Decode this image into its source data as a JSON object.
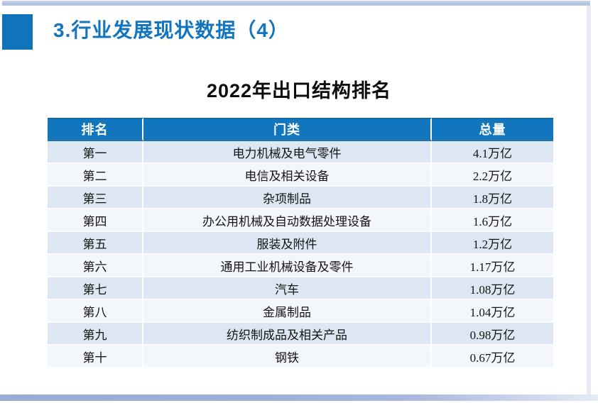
{
  "page_title": "3.行业发展现状数据（4）",
  "table_title": "2022年出口结构排名",
  "table": {
    "columns": [
      {
        "key": "rank",
        "label": "排名"
      },
      {
        "key": "category",
        "label": "门类"
      },
      {
        "key": "total",
        "label": "总量"
      }
    ],
    "rows": [
      {
        "rank": "第一",
        "category": "电力机械及电气零件",
        "total": "4.1万亿"
      },
      {
        "rank": "第二",
        "category": "电信及相关设备",
        "total": "2.2万亿"
      },
      {
        "rank": "第三",
        "category": "杂项制品",
        "total": "1.8万亿"
      },
      {
        "rank": "第四",
        "category": "办公用机械及自动数据处理设备",
        "total": "1.6万亿"
      },
      {
        "rank": "第五",
        "category": "服装及附件",
        "total": "1.2万亿"
      },
      {
        "rank": "第六",
        "category": "通用工业机械设备及零件",
        "total": "1.17万亿"
      },
      {
        "rank": "第七",
        "category": "汽车",
        "total": "1.08万亿"
      },
      {
        "rank": "第八",
        "category": "金属制品",
        "total": "1.04万亿"
      },
      {
        "rank": "第九",
        "category": "纺织制成品及相关产品",
        "total": "0.98万亿"
      },
      {
        "rank": "第十",
        "category": "钢铁",
        "total": "0.67万亿"
      }
    ]
  },
  "chart_data": {
    "type": "table",
    "title": "2022年出口结构排名",
    "columns": [
      "排名",
      "门类",
      "总量"
    ],
    "categories": [
      "电力机械及电气零件",
      "电信及相关设备",
      "杂项制品",
      "办公用机械及自动数据处理设备",
      "服装及附件",
      "通用工业机械设备及零件",
      "汽车",
      "金属制品",
      "纺织制成品及相关产品",
      "钢铁"
    ],
    "values_wanyi": [
      4.1,
      2.2,
      1.8,
      1.6,
      1.2,
      1.17,
      1.08,
      1.04,
      0.98,
      0.67
    ],
    "unit": "万亿"
  },
  "colors": {
    "title_blue": "#1375BE",
    "accent_square": "#1173BA",
    "table_header_bg": "#1176BE",
    "table_header_text": "#ffffff",
    "row_odd_bg": "#dce7f3",
    "row_even_bg": "#f3f6fa",
    "top_bar": "#aebfdd",
    "bottom_bar": "#97acd5"
  }
}
